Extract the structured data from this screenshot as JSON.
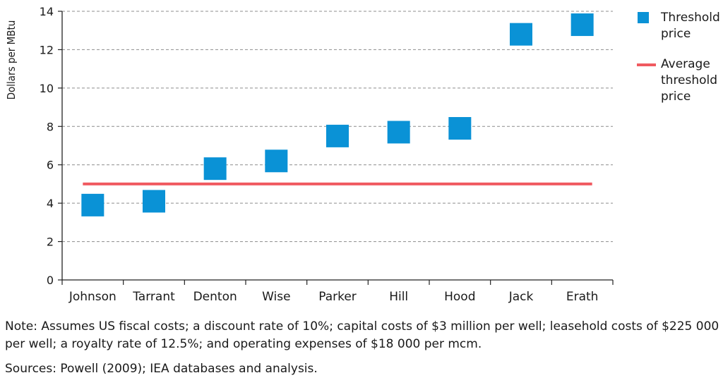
{
  "chart_data": {
    "type": "scatter",
    "categories": [
      "Johnson",
      "Tarrant",
      "Denton",
      "Wise",
      "Parker",
      "Hill",
      "Hood",
      "Jack",
      "Erath"
    ],
    "series": [
      {
        "name": "Threshold price",
        "values": [
          3.9,
          4.1,
          5.8,
          6.2,
          7.5,
          7.7,
          7.9,
          12.8,
          13.3
        ],
        "color": "#0a92d6"
      }
    ],
    "average": {
      "name": "Average threshold price",
      "value": 5.0,
      "color": "#f05a60"
    },
    "ylabel": "Dollars per MBtu",
    "ylim": [
      0,
      14
    ],
    "yticks": [
      0,
      2,
      4,
      6,
      8,
      10,
      12,
      14
    ],
    "legend": {
      "position": "top-right",
      "threshold_label": "Threshold price",
      "average_label": "Average threshold price"
    },
    "grid": true
  },
  "note": "Note: Assumes US fiscal costs; a discount rate of 10%; capital costs of $3 million per well; leasehold costs of $225 000 per well; a royalty rate of 12.5%; and operating expenses of $18 000 per mcm.",
  "sources": "Sources: Powell (2009); IEA databases and analysis."
}
